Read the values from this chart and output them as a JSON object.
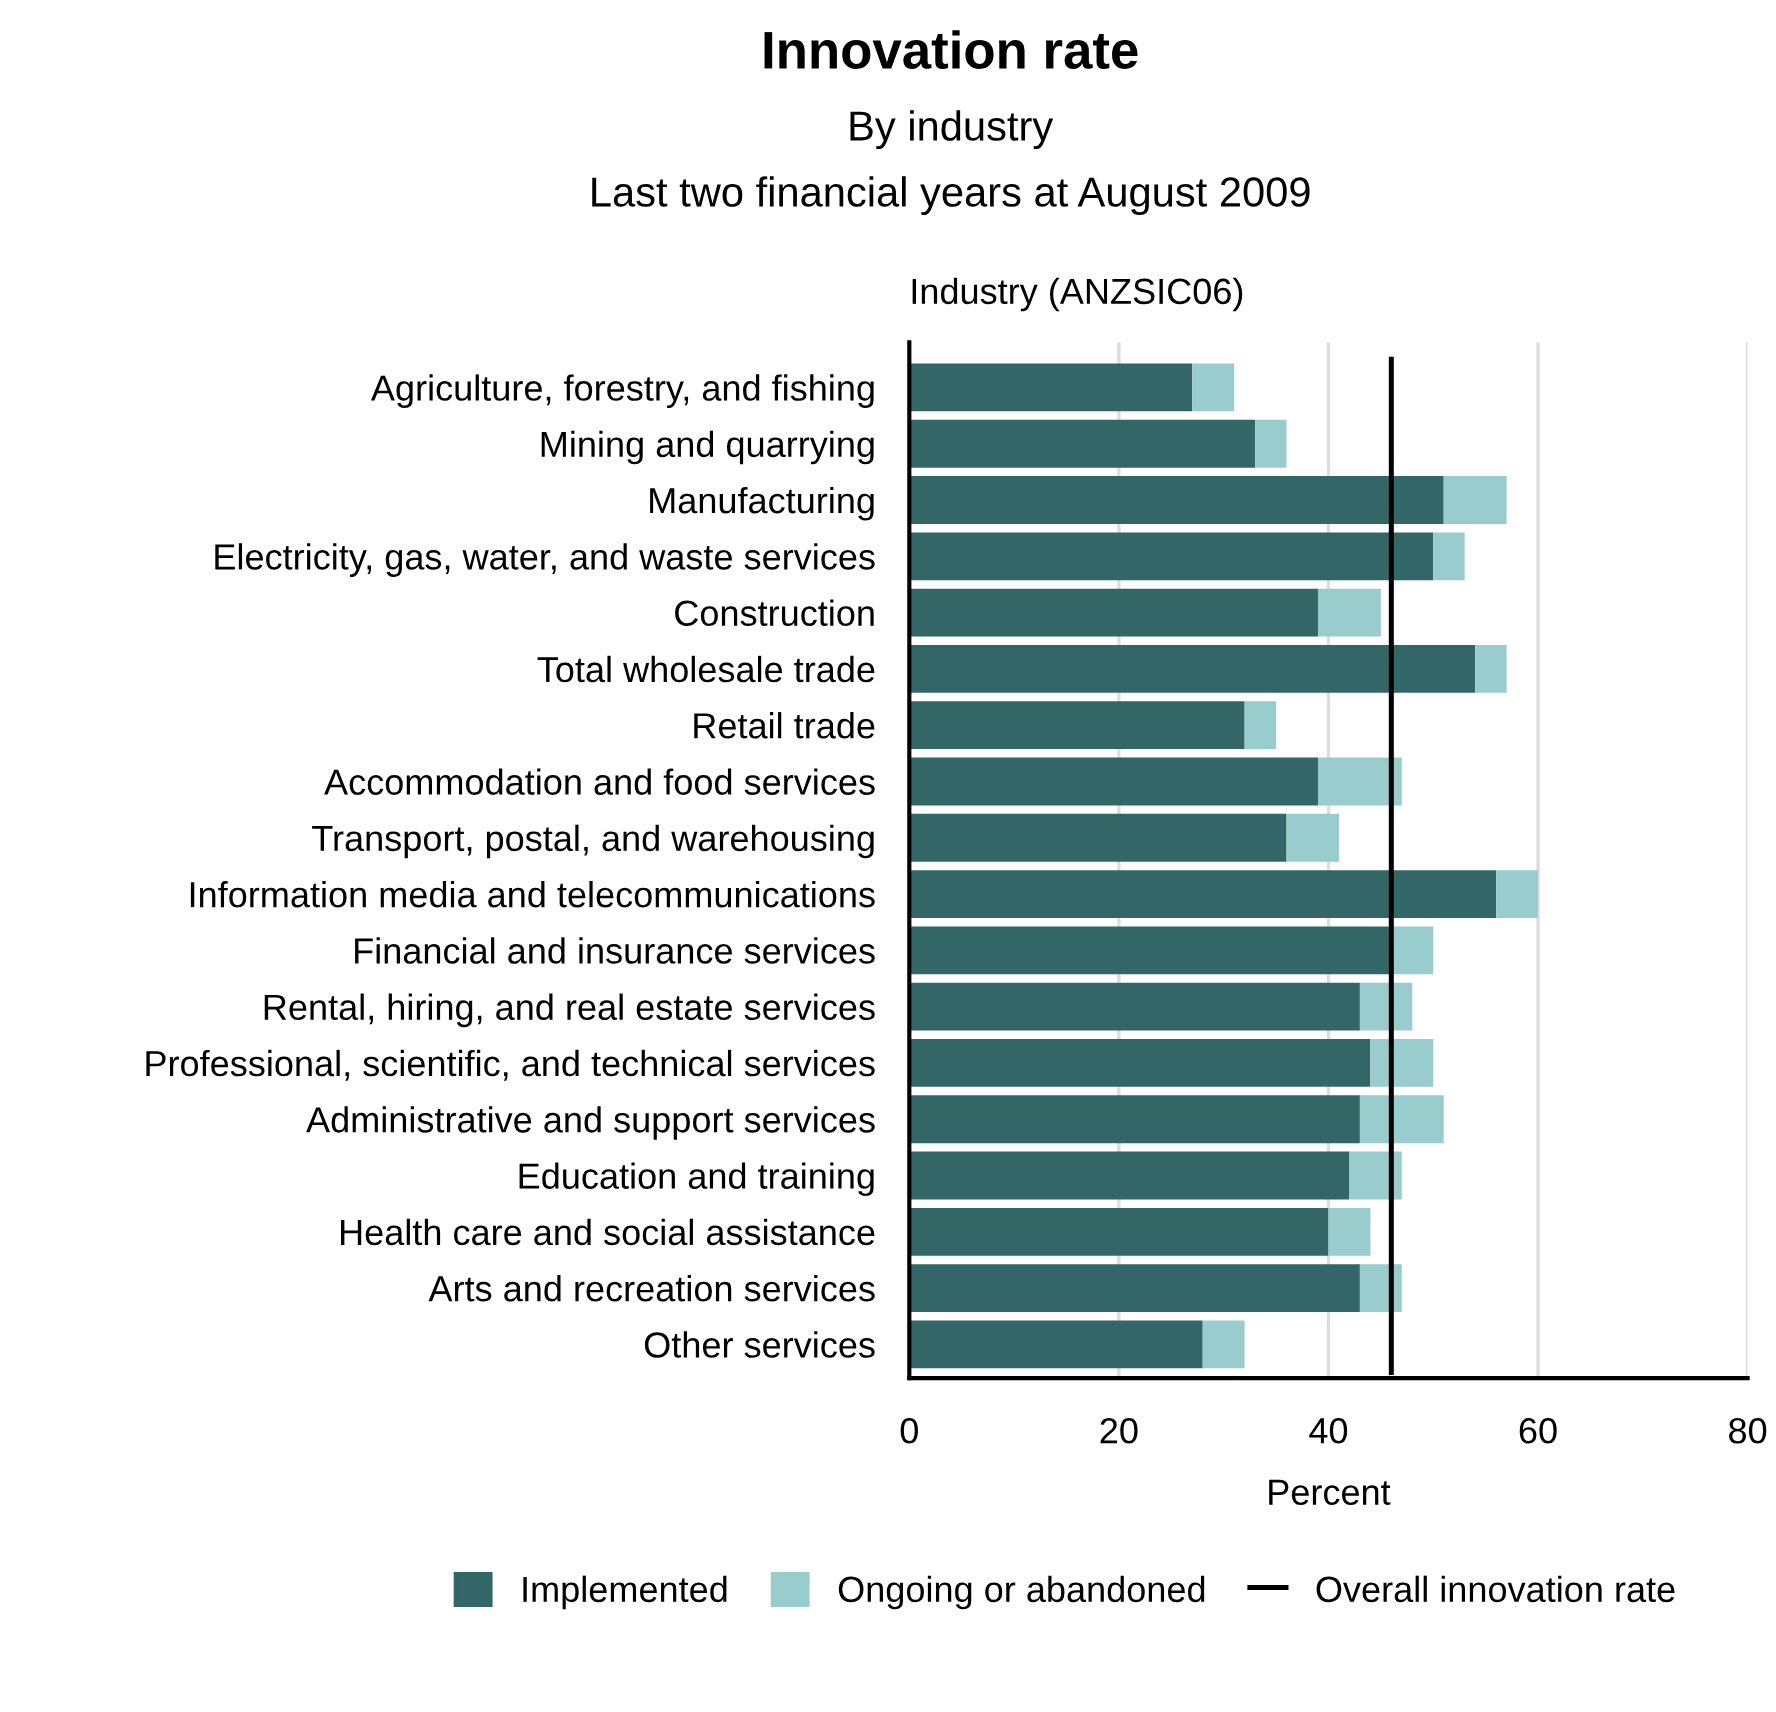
{
  "chart_data": {
    "type": "bar",
    "orientation": "horizontal",
    "stacked": true,
    "title": "Innovation rate",
    "subtitle": "By industry\nLast two financial years at August 2009",
    "xlabel": "Percent",
    "ylabel": "Industry (ANZSIC06)",
    "categories": [
      "Agriculture, forestry, and fishing",
      "Mining and quarrying",
      "Manufacturing",
      "Electricity, gas, water, and waste services",
      "Construction",
      "Total wholesale trade",
      "Retail trade",
      "Accommodation and food services",
      "Transport, postal, and warehousing",
      "Information media and telecommunications",
      "Financial and insurance services",
      "Rental, hiring, and real estate services",
      "Professional, scientific, and technical services",
      "Administrative and support services",
      "Education and training",
      "Health care and social assistance",
      "Arts and recreation services",
      "Other services"
    ],
    "series": [
      {
        "name": "Implemented",
        "color": "#336666",
        "values": [
          27,
          33,
          51,
          50,
          39,
          54,
          32,
          39,
          36,
          56,
          46,
          43,
          44,
          43,
          42,
          40,
          43,
          28
        ]
      },
      {
        "name": "Ongoing or abandoned",
        "color": "#99cccc",
        "values": [
          4,
          3,
          6,
          3,
          6,
          3,
          3,
          8,
          5,
          4,
          4,
          5,
          6,
          8,
          5,
          4,
          4,
          4
        ]
      }
    ],
    "ref_lines": [
      {
        "axis": "x",
        "value": 46,
        "label": "Overall innovation rate",
        "color": "#000000"
      }
    ],
    "xlim": [
      0,
      80
    ],
    "xticks": [
      0,
      20,
      40,
      60,
      80
    ],
    "grid": "x",
    "legend": "bottom"
  }
}
